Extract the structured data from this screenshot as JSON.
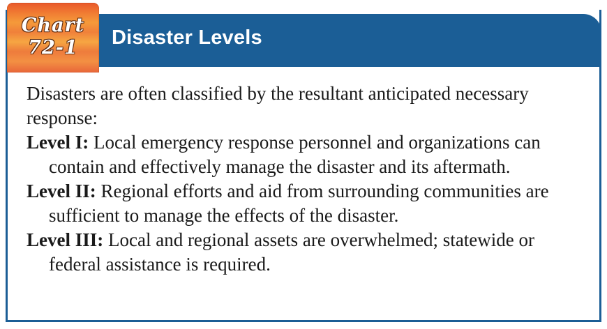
{
  "chart_label": {
    "line1": "Chart",
    "line2": "72-1"
  },
  "title": "Disaster Levels",
  "intro": "Disasters are often classified by the resultant anticipated necessary response:",
  "levels": [
    {
      "label": "Level I:",
      "text": " Local emergency response personnel and organizations can contain and effectively manage the disaster and its aftermath."
    },
    {
      "label": "Level II:",
      "text": " Regional efforts and aid from surrounding communities are sufficient to manage the effects of the disaster."
    },
    {
      "label": "Level III:",
      "text": " Local and regional assets are overwhelmed; statewide or federal assistance is required."
    }
  ],
  "colors": {
    "header_blue": "#1b5e96",
    "badge_orange": "#f07a32"
  }
}
